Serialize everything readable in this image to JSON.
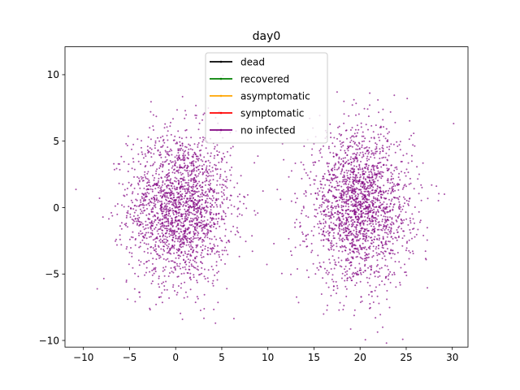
{
  "chart_data": {
    "type": "scatter",
    "title": "day0",
    "xlabel": "",
    "ylabel": "",
    "xlim": [
      -12.0,
      31.7
    ],
    "ylim": [
      -10.5,
      12.1
    ],
    "xticks": [
      -10,
      -5,
      0,
      5,
      10,
      15,
      20,
      25,
      30
    ],
    "yticks": [
      -10,
      -5,
      0,
      5,
      10
    ],
    "grid": false,
    "legend_position": "top-center",
    "series": [
      {
        "name": "dead",
        "color": "#000000",
        "point_count": 0
      },
      {
        "name": "recovered",
        "color": "#008000",
        "point_count": 0
      },
      {
        "name": "asymptomatic",
        "color": "#ffa500",
        "point_count": 0
      },
      {
        "name": "symptomatic",
        "color": "#ff0000",
        "point_count": 0
      },
      {
        "name": "no infected",
        "color": "#800080",
        "clusters": [
          {
            "center": [
              0.5,
              0.0
            ],
            "spread": [
              2.8,
              2.9
            ],
            "point_count": 2000
          },
          {
            "center": [
              20.0,
              0.0
            ],
            "spread": [
              2.8,
              2.9
            ],
            "point_count": 2000
          }
        ],
        "point_count": 4000
      }
    ]
  }
}
